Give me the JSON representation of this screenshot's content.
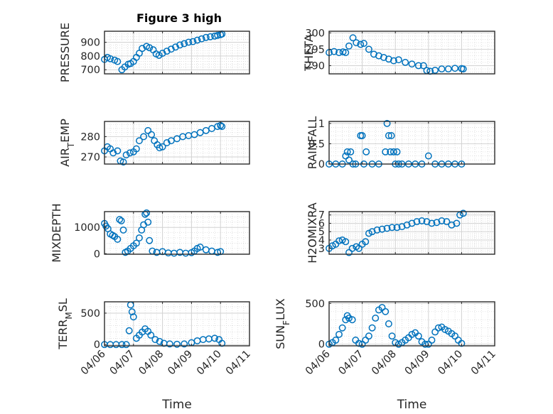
{
  "figure": {
    "title": "Figure 3 high",
    "marker_color": "#0072BD"
  },
  "chart_data": [
    {
      "type": "scatter",
      "title": "Figure 3 high",
      "ylabel": "PRESSURE",
      "xlabel": "",
      "xlim": [
        0,
        5
      ],
      "xticks": [
        0,
        1,
        2,
        3,
        4,
        5
      ],
      "ylim": [
        670,
        980
      ],
      "yticks": [
        700,
        800,
        900
      ],
      "yticklabels": [
        "700",
        "800",
        "900"
      ],
      "grid": true,
      "x": [
        0,
        0.1,
        0.2,
        0.35,
        0.45,
        0.6,
        0.7,
        0.82,
        0.9,
        1.0,
        1.1,
        1.2,
        1.3,
        1.45,
        1.55,
        1.68,
        1.78,
        1.88,
        2.0,
        2.15,
        2.3,
        2.45,
        2.6,
        2.75,
        2.9,
        3.05,
        3.2,
        3.35,
        3.5,
        3.65,
        3.8,
        3.9,
        4.0,
        4.05
      ],
      "y": [
        775,
        790,
        780,
        770,
        760,
        700,
        720,
        740,
        745,
        760,
        790,
        820,
        855,
        870,
        860,
        845,
        815,
        805,
        820,
        835,
        850,
        865,
        880,
        890,
        900,
        905,
        915,
        925,
        935,
        940,
        945,
        950,
        955,
        960
      ]
    },
    {
      "type": "scatter",
      "ylabel": "THETA",
      "xlim": [
        0,
        5
      ],
      "xticks": [
        0,
        1,
        2,
        3,
        4,
        5
      ],
      "ylim": [
        287.5,
        300.5
      ],
      "yticks": [
        290,
        295,
        300
      ],
      "yticklabels": [
        "290",
        "295",
        "300"
      ],
      "grid": true,
      "x": [
        0,
        0.15,
        0.3,
        0.42,
        0.5,
        0.6,
        0.72,
        0.82,
        0.95,
        1.05,
        1.2,
        1.35,
        1.5,
        1.65,
        1.8,
        1.95,
        2.1,
        2.3,
        2.5,
        2.7,
        2.85,
        2.95,
        3.05,
        3.2,
        3.4,
        3.6,
        3.8,
        4.0,
        4.05
      ],
      "y": [
        294,
        294.3,
        294,
        294.2,
        294,
        296,
        298.5,
        297,
        296.5,
        296.8,
        295,
        293.5,
        293,
        292.5,
        292,
        291.5,
        291.8,
        291,
        290.5,
        290,
        290,
        288.5,
        288.3,
        288.6,
        289,
        289,
        289.2,
        289.1,
        289
      ]
    },
    {
      "type": "scatter",
      "ylabel": "AIR_TEMP",
      "xlim": [
        0,
        5
      ],
      "xticks": [
        0,
        1,
        2,
        3,
        4,
        5
      ],
      "ylim": [
        266.5,
        287.5
      ],
      "yticks": [
        270,
        280
      ],
      "yticklabels": [
        "270",
        "280"
      ],
      "grid": true,
      "x": [
        0,
        0.1,
        0.2,
        0.3,
        0.45,
        0.55,
        0.65,
        0.75,
        0.88,
        1.0,
        1.1,
        1.2,
        1.35,
        1.5,
        1.62,
        1.72,
        1.82,
        1.9,
        2.0,
        2.15,
        2.3,
        2.5,
        2.7,
        2.9,
        3.1,
        3.3,
        3.5,
        3.7,
        3.9,
        4.0,
        4.05
      ],
      "y": [
        273,
        275,
        274,
        272,
        273,
        268,
        267.5,
        271,
        272,
        272.5,
        274,
        278,
        280,
        283,
        281,
        278,
        276,
        274.5,
        275,
        277,
        278,
        279,
        280,
        280.5,
        281,
        282,
        283,
        284,
        285,
        285.5,
        285
      ]
    },
    {
      "type": "scatter",
      "ylabel": "RAINFALL",
      "xlim": [
        0,
        5
      ],
      "xticks": [
        0,
        1,
        2,
        3,
        4,
        5
      ],
      "ylim": [
        0,
        1.05
      ],
      "yticks": [
        0,
        0.5,
        1
      ],
      "yticklabels": [
        "0",
        "0.5",
        "1"
      ],
      "grid": true,
      "x": [
        0,
        0.2,
        0.4,
        0.5,
        0.55,
        0.6,
        0.65,
        0.72,
        0.8,
        0.95,
        1.0,
        1.05,
        1.12,
        1.3,
        1.5,
        1.7,
        1.75,
        1.8,
        1.85,
        1.88,
        1.95,
        2.0,
        2.05,
        2.1,
        2.2,
        2.4,
        2.6,
        2.8,
        3.0,
        3.2,
        3.4,
        3.6,
        3.8,
        4.0
      ],
      "y": [
        0,
        0,
        0,
        0.2,
        0.3,
        0.1,
        0.3,
        0,
        0,
        0.7,
        0.7,
        0,
        0.3,
        0,
        0,
        0.3,
        1.0,
        0.7,
        0.3,
        0.7,
        0.3,
        0,
        0.3,
        0,
        0,
        0,
        0,
        0,
        0.2,
        0,
        0,
        0,
        0,
        0
      ]
    },
    {
      "type": "scatter",
      "ylabel": "MIXDEPTH",
      "xlim": [
        0,
        5
      ],
      "xticks": [
        0,
        1,
        2,
        3,
        4,
        5
      ],
      "ylim": [
        -20,
        1600
      ],
      "yticks": [
        0,
        1000
      ],
      "yticklabels": [
        "0",
        "1000"
      ],
      "grid": true,
      "x": [
        0,
        0.05,
        0.12,
        0.2,
        0.28,
        0.35,
        0.45,
        0.52,
        0.58,
        0.65,
        0.72,
        0.8,
        0.9,
        1.0,
        1.1,
        1.2,
        1.28,
        1.35,
        1.4,
        1.45,
        1.5,
        1.55,
        1.65,
        1.8,
        2.0,
        2.2,
        2.4,
        2.6,
        2.8,
        3.0,
        3.1,
        3.2,
        3.3,
        3.5,
        3.7,
        3.9,
        4.0
      ],
      "y": [
        1150,
        1050,
        950,
        750,
        700,
        650,
        550,
        1300,
        1250,
        900,
        50,
        100,
        200,
        300,
        400,
        600,
        900,
        1100,
        1500,
        1550,
        1200,
        500,
        100,
        50,
        80,
        30,
        20,
        50,
        20,
        40,
        100,
        200,
        250,
        150,
        100,
        50,
        80
      ]
    },
    {
      "type": "scatter",
      "ylabel": "H2OMIXRA",
      "xlim": [
        0,
        5
      ],
      "xticks": [
        0,
        1,
        2,
        3,
        4,
        5
      ],
      "ylim": [
        2.3,
        7.4
      ],
      "yticks": [
        3,
        4,
        5,
        6,
        7
      ],
      "yticklabels": [
        "3",
        "4",
        "5",
        "6",
        "7"
      ],
      "grid": true,
      "x": [
        0,
        0.1,
        0.2,
        0.3,
        0.4,
        0.5,
        0.6,
        0.7,
        0.82,
        0.9,
        1.0,
        1.1,
        1.2,
        1.3,
        1.45,
        1.6,
        1.75,
        1.9,
        2.05,
        2.2,
        2.35,
        2.5,
        2.65,
        2.8,
        2.95,
        3.1,
        3.25,
        3.4,
        3.55,
        3.7,
        3.85,
        3.95,
        4.05
      ],
      "y": [
        3,
        3.3,
        3.5,
        3.9,
        4,
        3.8,
        2.5,
        3,
        3.2,
        3,
        3.5,
        3.8,
        4.8,
        5,
        5.2,
        5.3,
        5.4,
        5.5,
        5.5,
        5.6,
        5.8,
        6,
        6.2,
        6.3,
        6.2,
        6,
        6.1,
        6.3,
        6.2,
        5.8,
        6.0,
        7.0,
        7.2
      ]
    },
    {
      "type": "scatter",
      "ylabel": "TERR_MSL",
      "xlabel": "Time",
      "xlim": [
        0,
        5
      ],
      "xticks": [
        0,
        1,
        2,
        3,
        4,
        5
      ],
      "xticklabels": [
        "04/06",
        "04/07",
        "04/08",
        "04/09",
        "04/10",
        "04/11"
      ],
      "ylim": [
        -20,
        680
      ],
      "yticks": [
        0,
        500
      ],
      "yticklabels": [
        "0",
        "500"
      ],
      "grid": true,
      "x": [
        0,
        0.2,
        0.4,
        0.6,
        0.75,
        0.85,
        0.9,
        0.95,
        1.0,
        1.1,
        1.2,
        1.3,
        1.4,
        1.5,
        1.6,
        1.75,
        1.9,
        2.05,
        2.25,
        2.5,
        2.75,
        3.0,
        3.2,
        3.4,
        3.6,
        3.8,
        3.95,
        4.05
      ],
      "y": [
        0,
        0,
        0,
        0,
        0,
        220,
        630,
        520,
        440,
        100,
        150,
        200,
        250,
        210,
        150,
        80,
        50,
        20,
        10,
        5,
        10,
        30,
        60,
        80,
        90,
        100,
        80,
        20
      ]
    },
    {
      "type": "scatter",
      "ylabel": "SUN_FLUX",
      "xlabel": "Time",
      "xlim": [
        0,
        5
      ],
      "xticks": [
        0,
        1,
        2,
        3,
        4,
        5
      ],
      "xticklabels": [
        "04/06",
        "04/07",
        "04/08",
        "04/09",
        "04/10",
        "04/11"
      ],
      "ylim": [
        -20,
        520
      ],
      "yticks": [
        0,
        500
      ],
      "yticklabels": [
        "0",
        "500"
      ],
      "grid": true,
      "x": [
        0,
        0.1,
        0.2,
        0.3,
        0.4,
        0.5,
        0.55,
        0.6,
        0.7,
        0.8,
        0.9,
        1.0,
        1.1,
        1.2,
        1.3,
        1.4,
        1.5,
        1.6,
        1.7,
        1.8,
        1.9,
        2.0,
        2.1,
        2.2,
        2.3,
        2.4,
        2.5,
        2.6,
        2.7,
        2.8,
        2.9,
        3.0,
        3.1,
        3.2,
        3.3,
        3.4,
        3.5,
        3.6,
        3.7,
        3.8,
        3.9,
        4.0
      ],
      "y": [
        0,
        20,
        50,
        120,
        200,
        300,
        350,
        320,
        300,
        50,
        10,
        0,
        50,
        100,
        200,
        320,
        420,
        450,
        400,
        250,
        100,
        20,
        0,
        20,
        50,
        80,
        120,
        140,
        100,
        30,
        0,
        0,
        50,
        150,
        200,
        210,
        180,
        160,
        130,
        100,
        50,
        10
      ]
    }
  ]
}
